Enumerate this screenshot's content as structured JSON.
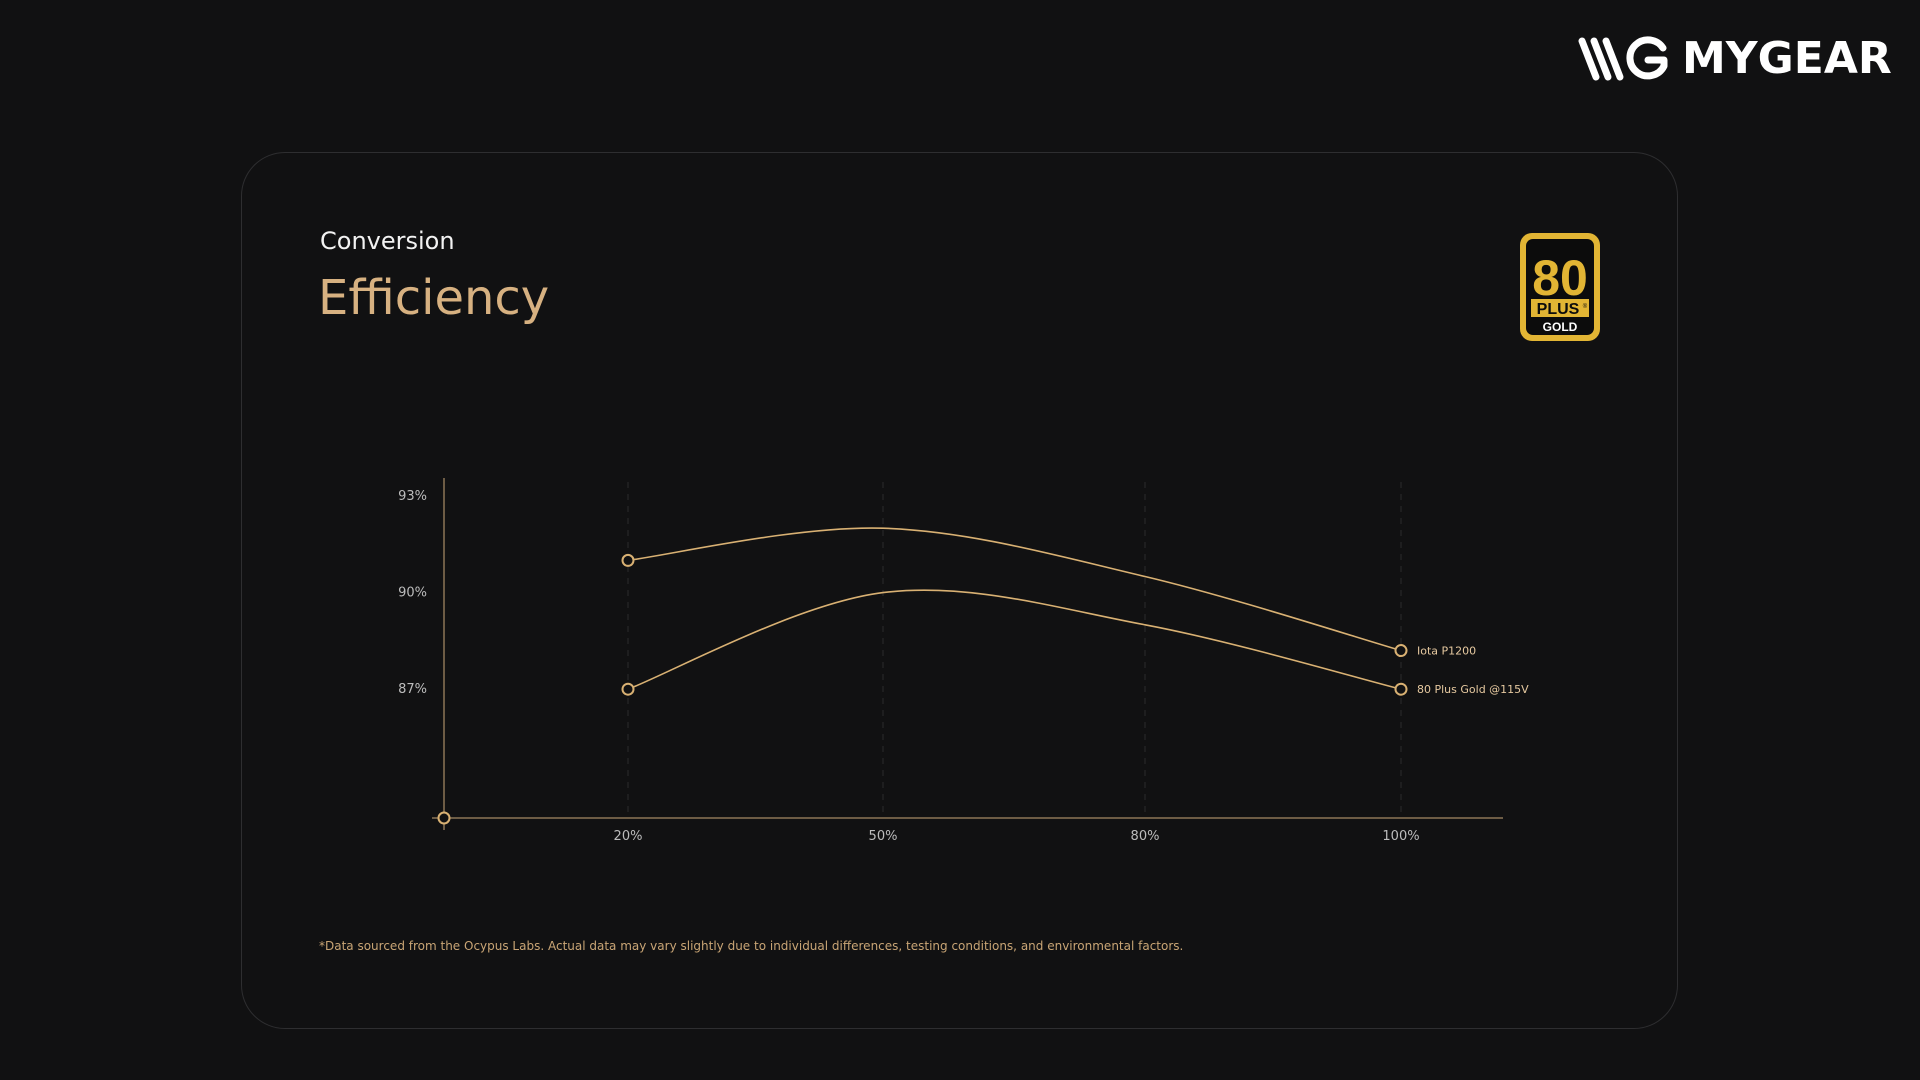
{
  "brand": {
    "name": "MYGEAR",
    "logo_icon": "mg-logo-icon"
  },
  "header": {
    "subtitle": "Conversion",
    "title": "Efficiency"
  },
  "badge": {
    "number": "80",
    "plus": "PLUS",
    "registered": "®",
    "grade": "GOLD",
    "color": "#e2b534"
  },
  "colors": {
    "accent": "#d7b181",
    "line": "#d9b173",
    "axis": "#c9a878",
    "background": "#111112"
  },
  "chart_data": {
    "type": "line",
    "x": [
      "20%",
      "50%",
      "80%",
      "100%"
    ],
    "yticks": [
      "93%",
      "90%",
      "87%"
    ],
    "yrange": [
      83,
      93.6
    ],
    "grid": "vertical-dashed",
    "series": [
      {
        "name": "Iota P1200",
        "values": [
          91.0,
          92.0,
          90.5,
          88.2
        ]
      },
      {
        "name": "80 Plus Gold @115V",
        "values": [
          87.0,
          90.0,
          89.0,
          87.0
        ]
      }
    ]
  },
  "footnote": "*Data sourced from the Ocypus Labs. Actual data may vary slightly due to individual differences, testing conditions, and environmental factors."
}
